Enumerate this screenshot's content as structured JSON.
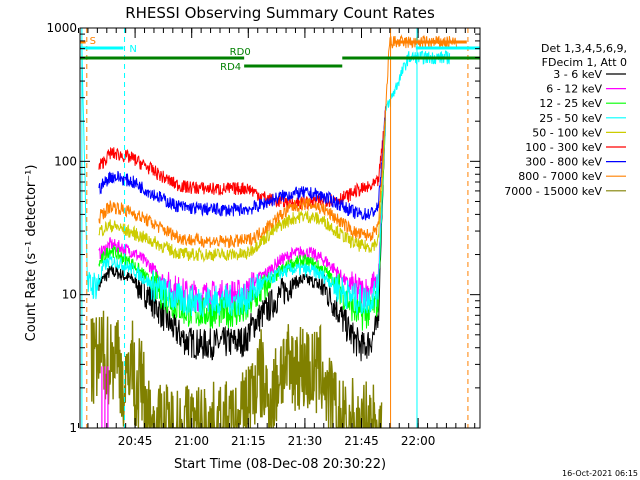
{
  "chart_data": {
    "type": "line",
    "title": "RHESSI Observing Summary Count Rates",
    "xlabel": "Start Time (08-Dec-08 20:30:22)",
    "ylabel": "Count Rate (s⁻¹ detector⁻¹)",
    "yscale": "log",
    "ylim": [
      1,
      1000
    ],
    "xlim_minutes": [
      0,
      106
    ],
    "x_ticks": [
      {
        "m": 14.6,
        "label": "20:45"
      },
      {
        "m": 29.6,
        "label": "21:00"
      },
      {
        "m": 44.6,
        "label": "21:15"
      },
      {
        "m": 59.6,
        "label": "21:30"
      },
      {
        "m": 74.6,
        "label": "21:45"
      },
      {
        "m": 89.6,
        "label": "22:00"
      }
    ],
    "y_ticks": [
      {
        "v": 1,
        "label": "1"
      },
      {
        "v": 10,
        "label": "10"
      },
      {
        "v": 100,
        "label": "100"
      },
      {
        "v": 1000,
        "label": "1000"
      }
    ],
    "legend_header": [
      "Det 1,3,4,5,6,9,",
      "FDecim 1, Att 0"
    ],
    "legend_position": "right",
    "series": [
      {
        "name": "3 - 6 keV",
        "color": "#000000",
        "x": [
          5,
          8,
          10,
          14,
          18,
          22,
          25,
          28,
          32,
          36,
          40,
          44,
          45,
          47,
          50,
          53,
          56,
          59,
          62,
          65,
          68,
          71,
          73,
          75,
          77,
          79,
          80,
          81
        ],
        "values": [
          12,
          15,
          14.5,
          13,
          10,
          7,
          5.5,
          4.5,
          4.2,
          4.3,
          4.4,
          4.5,
          5.5,
          6.5,
          8,
          10,
          12,
          13,
          12.5,
          11,
          8,
          5.5,
          4.5,
          4,
          4.5,
          6,
          40,
          230
        ]
      },
      {
        "name": "6 - 12 keV",
        "color": "#ff00ff",
        "x": [
          5,
          8,
          10,
          14,
          18,
          22,
          25,
          28,
          32,
          36,
          40,
          44,
          45,
          47,
          50,
          53,
          56,
          59,
          62,
          65,
          68,
          71,
          73,
          75,
          77,
          79,
          80,
          81
        ],
        "values": [
          20,
          24,
          23,
          21,
          17,
          13,
          11,
          10,
          9.8,
          9.8,
          10,
          10,
          11,
          13,
          15,
          18,
          20,
          21,
          20,
          18,
          15,
          12,
          11,
          10.5,
          11,
          13,
          50,
          240
        ]
      },
      {
        "name": "12 - 25 keV",
        "color": "#00ff00",
        "x": [
          5,
          8,
          10,
          14,
          18,
          22,
          25,
          28,
          32,
          36,
          40,
          44,
          45,
          47,
          50,
          53,
          56,
          59,
          62,
          65,
          68,
          71,
          73,
          75,
          77,
          79,
          80,
          81
        ],
        "values": [
          17,
          22,
          20,
          17,
          13,
          10,
          8.5,
          7.5,
          7.3,
          7.3,
          7.4,
          7.5,
          8.5,
          10,
          12,
          15,
          17,
          18,
          17,
          15,
          12,
          9,
          7.5,
          7,
          7.5,
          9,
          45,
          235
        ]
      },
      {
        "name": "25 - 50 keV",
        "color": "#00ffff",
        "x": [
          0.5,
          2,
          5,
          6,
          8,
          10,
          14,
          18,
          22,
          25,
          28,
          32,
          36,
          40,
          44,
          45,
          47,
          50,
          53,
          56,
          59,
          62,
          65,
          68,
          71,
          73,
          75,
          77,
          79,
          80,
          81,
          87,
          98
        ],
        "values": [
          700,
          11.5,
          12,
          16,
          18,
          17.5,
          15.5,
          12.5,
          10.5,
          9.5,
          9,
          9,
          9,
          9,
          9.2,
          10,
          11.5,
          13,
          14.5,
          15.5,
          15.5,
          15,
          13.5,
          11.5,
          10,
          9.3,
          9,
          9.5,
          11,
          50,
          235,
          600,
          600
        ]
      },
      {
        "name": "50 - 100 keV",
        "color": "#cccc00",
        "x": [
          5,
          8,
          10,
          14,
          18,
          22,
          25,
          28,
          32,
          36,
          40,
          44,
          45,
          47,
          50,
          53,
          56,
          59,
          62,
          65,
          68,
          71,
          73,
          75,
          77,
          79,
          80,
          81
        ],
        "values": [
          30,
          33,
          32,
          29,
          26,
          23,
          21,
          20,
          20,
          20,
          20,
          20,
          21,
          24,
          28,
          33,
          37,
          39,
          38,
          35,
          30,
          26,
          24,
          23,
          23,
          25,
          60,
          240
        ]
      },
      {
        "name": "100 - 300 keV",
        "color": "#ff0000",
        "x": [
          5,
          8,
          10,
          14,
          18,
          22,
          25,
          28,
          32,
          36,
          40,
          44,
          45,
          47,
          50,
          53,
          56,
          59,
          62,
          65,
          68,
          71,
          73,
          75,
          77,
          79,
          80,
          81
        ],
        "values": [
          90,
          115,
          113,
          105,
          90,
          76,
          68,
          64,
          63,
          62,
          62,
          63,
          62,
          57,
          52,
          50,
          49,
          49,
          50,
          51,
          52,
          55,
          60,
          62,
          64,
          70,
          120,
          250
        ]
      },
      {
        "name": "300 - 800 keV",
        "color": "#0000ff",
        "x": [
          5,
          8,
          10,
          14,
          18,
          22,
          25,
          28,
          32,
          36,
          40,
          44,
          45,
          47,
          50,
          53,
          56,
          59,
          62,
          65,
          68,
          71,
          73,
          75,
          77,
          79,
          80,
          81
        ],
        "values": [
          62,
          77,
          76,
          70,
          60,
          52,
          47,
          45,
          44,
          43.5,
          43,
          44,
          44,
          46,
          50,
          54,
          57,
          58,
          57,
          54,
          49,
          44,
          41,
          40,
          40.5,
          45,
          100,
          245
        ]
      },
      {
        "name": "800 - 7000 keV",
        "color": "#ff8000",
        "x": [
          5,
          8,
          10,
          14,
          18,
          22,
          25,
          28,
          32,
          36,
          40,
          44,
          45,
          47,
          50,
          53,
          56,
          59,
          62,
          65,
          68,
          71,
          73,
          75,
          77,
          79,
          80,
          81,
          82,
          100
        ],
        "values": [
          38,
          46,
          45,
          41,
          36,
          31,
          28,
          26,
          25.5,
          25,
          25,
          25.5,
          26,
          28,
          33,
          39,
          45,
          48,
          47,
          43,
          37,
          32,
          29,
          28,
          28,
          31,
          80,
          240,
          780,
          780
        ]
      },
      {
        "name": "7000 - 15000 keV",
        "color": "#808000",
        "x": [
          3,
          6,
          8,
          10,
          11,
          12,
          13,
          14,
          14.5,
          15,
          16,
          18,
          20,
          25,
          30,
          40,
          42,
          44,
          48,
          50,
          52,
          53,
          54,
          56,
          57,
          58,
          60,
          62,
          64,
          65,
          66,
          67,
          68,
          70,
          72,
          74,
          75,
          80
        ],
        "values": [
          3,
          3.5,
          3.2,
          3.8,
          2.5,
          1.5,
          3.5,
          3,
          2.2,
          1.5,
          2.5,
          1.2,
          1,
          1,
          1,
          1,
          1,
          1.5,
          2.5,
          1.5,
          2,
          2.8,
          3,
          2.5,
          3,
          3,
          2.8,
          2.5,
          2.8,
          2.2,
          1.6,
          1.5,
          1.2,
          1,
          1.1,
          1,
          1,
          1
        ]
      }
    ],
    "attenuator_state": [
      {
        "label": "RD0",
        "from": -1,
        "to": 43.5,
        "level": "upper"
      },
      {
        "label": "RD4",
        "from": 43.5,
        "to": 69.5,
        "level": "lower"
      },
      {
        "label": "",
        "from": 69.5,
        "to": 106,
        "level": "upper"
      }
    ],
    "saa_marker": {
      "label": "S",
      "from": -1,
      "to": 1.5
    },
    "night_marker": {
      "label": "N",
      "from": -1,
      "to": 11.5
    },
    "night_marker_2": {
      "from": 89,
      "to": 106
    },
    "orange_top_bar": {
      "from": 83,
      "to": 102.5
    },
    "vlines": [
      {
        "m": 0.5,
        "color": "#00ffff",
        "dash": false
      },
      {
        "m": 1.8,
        "color": "#ff8000",
        "dash": true
      },
      {
        "m": 11.8,
        "color": "#00ffff",
        "dash": true
      },
      {
        "m": 82.3,
        "color": "#ff8000",
        "dash": false
      },
      {
        "m": 89.3,
        "color": "#00ffff",
        "dash": false
      },
      {
        "m": 102.8,
        "color": "#ff8000",
        "dash": true
      }
    ],
    "magenta_lines": [
      5.8,
      6.6,
      7.4
    ]
  },
  "timestamp": "16-Oct-2021 06:15"
}
